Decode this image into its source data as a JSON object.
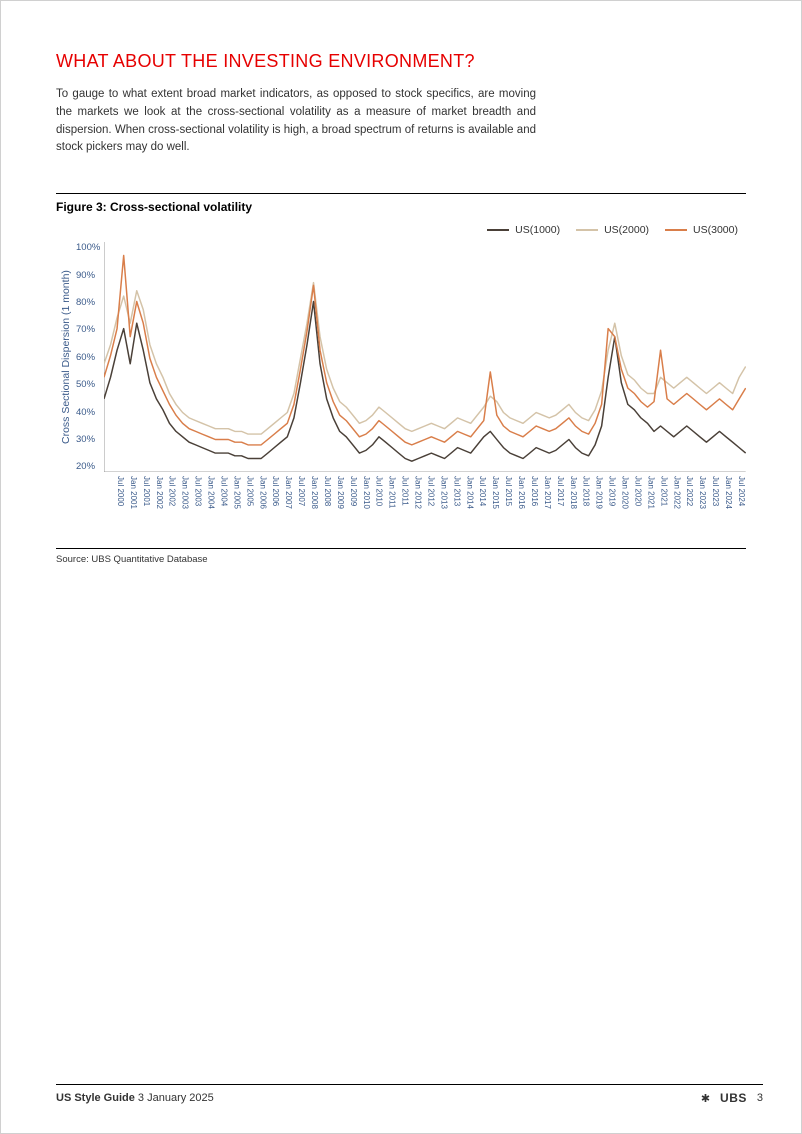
{
  "section_title": "WHAT ABOUT THE INVESTING ENVIRONMENT?",
  "body_text": "To gauge to what extent broad market indicators, as opposed to stock specifics, are moving the markets we look at the cross-sectional volatility as a measure of market breadth and dispersion. When cross-sectional volatility is high, a broad spectrum of returns is available and stock pickers may do well.",
  "figure": {
    "title": "Figure 3: Cross-sectional volatility",
    "y_axis_label": "Cross Sectional Dispersion (1 month)",
    "source": "Source: UBS Quantitative Database",
    "ylim": [
      15,
      100
    ],
    "y_ticks": [
      "100%",
      "90%",
      "80%",
      "70%",
      "60%",
      "50%",
      "40%",
      "30%",
      "20%"
    ],
    "x_ticks": [
      "Jul 2000",
      "Jan 2001",
      "Jul 2001",
      "Jan 2002",
      "Jul 2002",
      "Jan 2003",
      "Jul 2003",
      "Jan 2004",
      "Jul 2004",
      "Jan 2005",
      "Jul 2005",
      "Jan 2006",
      "Jul 2006",
      "Jan 2007",
      "Jul 2007",
      "Jan 2008",
      "Jul 2008",
      "Jan 2009",
      "Jul 2009",
      "Jan 2010",
      "Jul 2010",
      "Jan 2011",
      "Jul 2011",
      "Jan 2012",
      "Jul 2012",
      "Jan 2013",
      "Jul 2013",
      "Jan 2014",
      "Jul 2014",
      "Jan 2015",
      "Jul 2015",
      "Jan 2016",
      "Jul 2016",
      "Jan 2017",
      "Jul 2017",
      "Jan 2018",
      "Jul 2018",
      "Jan 2019",
      "Jul 2019",
      "Jan 2020",
      "Jul 2020",
      "Jan 2021",
      "Jul 2021",
      "Jan 2022",
      "Jul 2022",
      "Jan 2023",
      "Jul 2023",
      "Jan 2024",
      "Jul 2024"
    ],
    "background_color": "#ffffff",
    "axis_label_color": "#3a5a8a",
    "tick_fontsize": 9,
    "line_width": 1.4,
    "series": [
      {
        "name": "US(1000)",
        "color": "#4a4038",
        "values": [
          42,
          50,
          60,
          68,
          55,
          70,
          60,
          48,
          42,
          38,
          33,
          30,
          28,
          26,
          25,
          24,
          23,
          22,
          22,
          22,
          21,
          21,
          20,
          20,
          20,
          22,
          24,
          26,
          28,
          35,
          48,
          62,
          78,
          55,
          42,
          35,
          30,
          28,
          25,
          22,
          23,
          25,
          28,
          26,
          24,
          22,
          20,
          19,
          20,
          21,
          22,
          21,
          20,
          22,
          24,
          23,
          22,
          25,
          28,
          30,
          27,
          24,
          22,
          21,
          20,
          22,
          24,
          23,
          22,
          23,
          25,
          27,
          24,
          22,
          21,
          25,
          32,
          50,
          65,
          48,
          40,
          38,
          35,
          33,
          30,
          32,
          30,
          28,
          30,
          32,
          30,
          28,
          26,
          28,
          30,
          28,
          26,
          24,
          22
        ]
      },
      {
        "name": "US(2000)",
        "color": "#d4c3a8",
        "values": [
          55,
          62,
          72,
          80,
          70,
          82,
          75,
          62,
          55,
          50,
          44,
          40,
          37,
          35,
          34,
          33,
          32,
          31,
          31,
          31,
          30,
          30,
          29,
          29,
          29,
          31,
          33,
          35,
          37,
          44,
          57,
          70,
          85,
          65,
          53,
          46,
          41,
          39,
          36,
          33,
          34,
          36,
          39,
          37,
          35,
          33,
          31,
          30,
          31,
          32,
          33,
          32,
          31,
          33,
          35,
          34,
          33,
          36,
          39,
          43,
          41,
          37,
          35,
          34,
          33,
          35,
          37,
          36,
          35,
          36,
          38,
          40,
          37,
          35,
          34,
          38,
          45,
          60,
          70,
          58,
          51,
          49,
          46,
          44,
          44,
          50,
          48,
          46,
          48,
          50,
          48,
          46,
          44,
          46,
          48,
          46,
          44,
          50,
          54
        ]
      },
      {
        "name": "US(3000)",
        "color": "#d97e4a",
        "values": [
          50,
          58,
          68,
          95,
          65,
          78,
          70,
          57,
          50,
          45,
          40,
          36,
          33,
          31,
          30,
          29,
          28,
          27,
          27,
          27,
          26,
          26,
          25,
          25,
          25,
          27,
          29,
          31,
          33,
          40,
          53,
          67,
          84,
          60,
          48,
          41,
          36,
          34,
          31,
          28,
          29,
          31,
          34,
          32,
          30,
          28,
          26,
          25,
          26,
          27,
          28,
          27,
          26,
          28,
          30,
          29,
          28,
          31,
          34,
          52,
          36,
          32,
          30,
          29,
          28,
          30,
          32,
          31,
          30,
          31,
          33,
          35,
          32,
          30,
          29,
          33,
          40,
          68,
          65,
          53,
          46,
          44,
          41,
          39,
          41,
          60,
          42,
          40,
          42,
          44,
          42,
          40,
          38,
          40,
          42,
          40,
          38,
          42,
          46
        ]
      }
    ]
  },
  "footer": {
    "title": "US Style Guide",
    "date": "3 January 2025",
    "brand": "UBS",
    "page": "3"
  }
}
